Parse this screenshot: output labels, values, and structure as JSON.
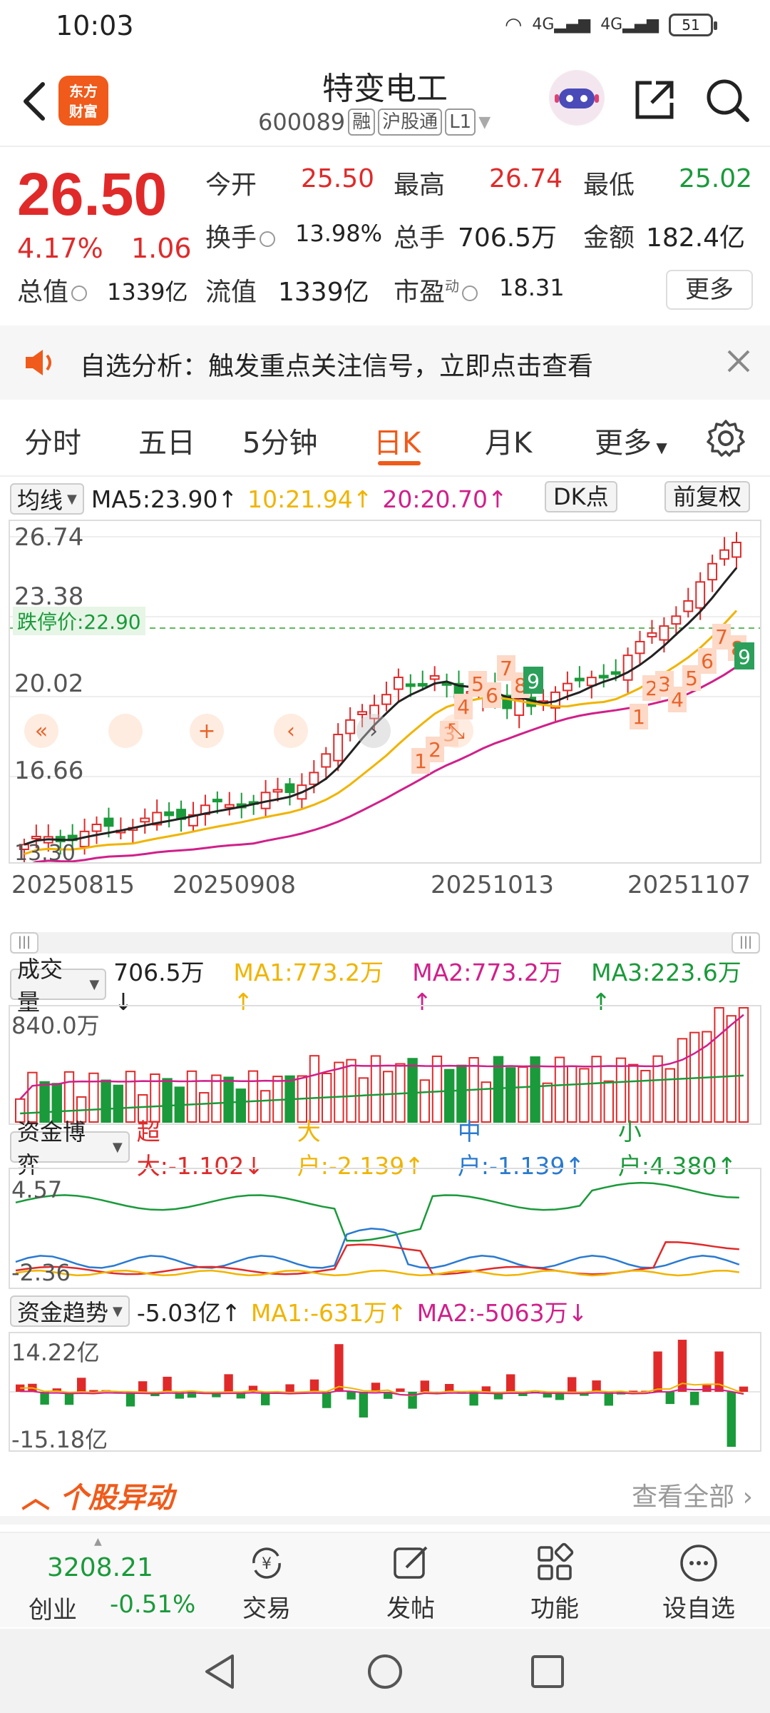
{
  "status": {
    "time": "10:03",
    "network": "4G",
    "battery": "51"
  },
  "header": {
    "name": "特变电工",
    "code": "600089",
    "tags": [
      "融",
      "沪股通",
      "L1"
    ],
    "logo_line1": "东方",
    "logo_line2": "财富"
  },
  "quote": {
    "price": "26.50",
    "pct": "4.17%",
    "change": "1.06",
    "open_label": "今开",
    "open": "25.50",
    "high_label": "最高",
    "high": "26.74",
    "low_label": "最低",
    "low": "25.02",
    "turnover_label": "换手",
    "turnover": "13.98%",
    "volume_label": "总手",
    "volume": "706.5万",
    "amount_label": "金额",
    "amount": "182.4亿",
    "mktcap_label": "总值",
    "mktcap": "1339亿",
    "float_label": "流值",
    "float": "1339亿",
    "pe_label": "市盈",
    "pe_sup": "动",
    "pe": "18.31",
    "more": "更多"
  },
  "notice": {
    "text": "自选分析：触发重点关注信号，立即点击查看"
  },
  "tabs": [
    "分时",
    "五日",
    "5分钟",
    "日K",
    "月K",
    "更多"
  ],
  "kline": {
    "selector": "均线",
    "ma5": "MA5:23.90↑",
    "ma10": "10:21.94↑",
    "ma20": "20:20.70↑",
    "dk_button": "DK点",
    "adjust_button": "前复权",
    "y_ticks": [
      "26.74",
      "23.38",
      "20.02",
      "16.66",
      "13.30"
    ],
    "limit_label": "跌停价:22.90",
    "dates": [
      "20250815",
      "20250908",
      "20251013",
      "20251107"
    ],
    "seq1": [
      "1",
      "2",
      "3",
      "4",
      "5",
      "6",
      "7",
      "8",
      "9"
    ],
    "seq2": [
      "1",
      "2",
      "3",
      "4",
      "5",
      "6",
      "7",
      "8",
      "9"
    ]
  },
  "volume": {
    "selector": "成交量",
    "value": "706.5万↓",
    "ma1": "MA1:773.2万↑",
    "ma2": "MA2:773.2万↑",
    "ma3": "MA3:223.6万↑",
    "top_label": "840.0万"
  },
  "capital": {
    "selector": "资金博弈",
    "super": "超大:-1.102↓",
    "large": "大户:-2.139↑",
    "medium": "中户:-1.139↑",
    "small": "小户:4.380↑",
    "top_label": "4.57",
    "bottom_label": "-2.36"
  },
  "trend": {
    "selector": "资金趋势",
    "value": "-5.03亿↑",
    "ma1": "MA1:-631万↑",
    "ma2": "MA2:-5063万↓",
    "top_label": "14.22亿",
    "bottom_label": "-15.18亿"
  },
  "movement": {
    "title": "个股异动",
    "view_all": "查看全部"
  },
  "bottomnav": {
    "index_value": "3208.21",
    "index_name": "创业",
    "index_pct": "-0.51%",
    "items": [
      "交易",
      "发帖",
      "功能",
      "设自选"
    ]
  },
  "colors": {
    "up": "#e02a2a",
    "down": "#1a9a3a",
    "accent": "#f05a1a",
    "ma5": "#222222",
    "ma10": "#f0b400",
    "ma20": "#d0208a"
  }
}
